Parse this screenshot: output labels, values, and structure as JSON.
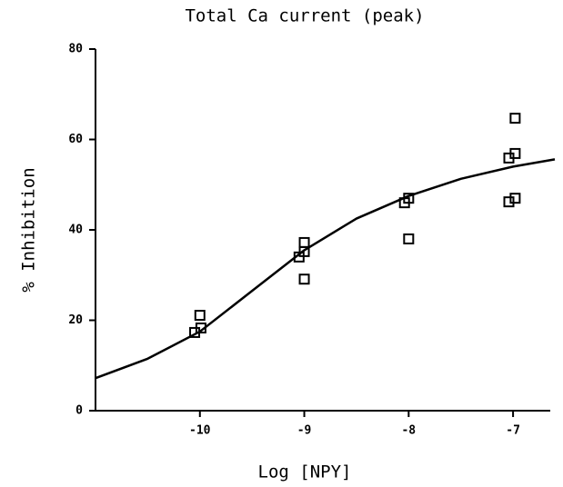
{
  "chart_data": {
    "type": "scatter",
    "title": "Total Ca current (peak)",
    "x_label": "Log [NPY]",
    "y_label": "% Inhibition",
    "xlim": [
      -11,
      -6.6
    ],
    "ylim": [
      0,
      80
    ],
    "xticks": [
      -10,
      -9,
      -8,
      -7
    ],
    "yticks": [
      0,
      20,
      40,
      60,
      80
    ],
    "series": [
      {
        "type": "scatter",
        "color": "#000000",
        "x": [
          -10.05,
          -9.99,
          -10,
          -9.05,
          -9,
          -9,
          -9,
          -8.04,
          -8,
          -8,
          -7.04,
          -6.98,
          -7.04,
          -6.98,
          -6.98
        ],
        "values": [
          17.3,
          18.3,
          21.1,
          34,
          35.2,
          37.2,
          29.1,
          46,
          47,
          38,
          46.2,
          47,
          55.9,
          56.9,
          64.7
        ]
      },
      {
        "type": "line",
        "color": "#000000",
        "x": [
          -11,
          -10.5,
          -10,
          -9.5,
          -9,
          -8.5,
          -8,
          -7.5,
          -7,
          -6.6
        ],
        "values": [
          7.2,
          11.5,
          17.5,
          26.5,
          35.5,
          42.5,
          47.5,
          51.3,
          54,
          55.6
        ]
      }
    ]
  }
}
